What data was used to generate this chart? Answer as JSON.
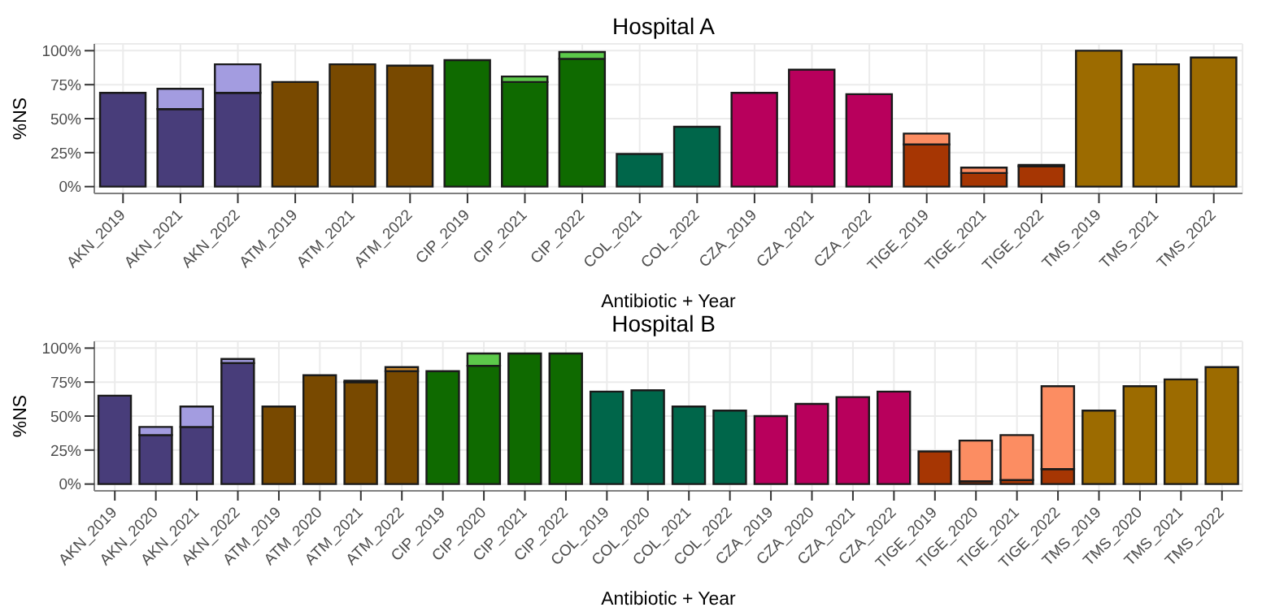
{
  "chart_data": [
    {
      "type": "bar",
      "title": "Hospital A",
      "xlabel": "Antibiotic + Year",
      "ylabel": "%NS",
      "stacked": true,
      "grid": true,
      "categories": [
        "AKN_2019",
        "AKN_2021",
        "AKN_2022",
        "ATM_2019",
        "ATM_2021",
        "ATM_2022",
        "CIP_2019",
        "CIP_2021",
        "CIP_2022",
        "COL_2021",
        "COL_2022",
        "CZA_2019",
        "CZA_2021",
        "CZA_2022",
        "TIGE_2019",
        "TIGE_2021",
        "TIGE_2022",
        "TMS_2019",
        "TMS_2021",
        "TMS_2022"
      ],
      "ylim": [
        -5,
        105
      ],
      "yticks": [
        {
          "value": 0,
          "label": "0%"
        },
        {
          "value": 25,
          "label": "25%"
        },
        {
          "value": 50,
          "label": "50%"
        },
        {
          "value": 75,
          "label": "75%"
        },
        {
          "value": 100,
          "label": "100%"
        }
      ],
      "series": [
        {
          "values": [
            69,
            57,
            69,
            77,
            90,
            89,
            93,
            77,
            94,
            24,
            44,
            69,
            86,
            68,
            31,
            10,
            15,
            100,
            90,
            95
          ],
          "colors": [
            "#483d7a",
            "#483d7a",
            "#483d7a",
            "#784900",
            "#784900",
            "#784900",
            "#0f6a00",
            "#0f6a00",
            "#0f6a00",
            "#00664a",
            "#00664a",
            "#b8005c",
            "#b8005c",
            "#b8005c",
            "#a63603",
            "#a63603",
            "#a63603",
            "#9c6b00",
            "#9c6b00",
            "#9c6b00"
          ]
        },
        {
          "values": [
            null,
            15,
            21,
            null,
            null,
            null,
            null,
            4,
            5,
            null,
            null,
            null,
            null,
            null,
            8,
            4,
            1,
            null,
            null,
            null
          ],
          "colors": [
            "#a39ce0",
            "#a39ce0",
            "#a39ce0",
            "#c8862a",
            "#c8862a",
            "#c8862a",
            "#5cc94a",
            "#5cc94a",
            "#5cc94a",
            "#3fb58a",
            "#3fb58a",
            "#e6559c",
            "#e6559c",
            "#e6559c",
            "#fc8d62",
            "#fc8d62",
            "#fc8d62",
            "#d4a13a",
            "#d4a13a",
            "#d4a13a"
          ]
        }
      ]
    },
    {
      "type": "bar",
      "title": "Hospital B",
      "xlabel": "Antibiotic + Year",
      "ylabel": "%NS",
      "stacked": true,
      "grid": true,
      "categories": [
        "AKN_2019",
        "AKN_2020",
        "AKN_2021",
        "AKN_2022",
        "ATM_2019",
        "ATM_2020",
        "ATM_2021",
        "ATM_2022",
        "CIP_2019",
        "CIP_2020",
        "CIP_2021",
        "CIP_2022",
        "COL_2019",
        "COL_2020",
        "COL_2021",
        "COL_2022",
        "CZA_2019",
        "CZA_2020",
        "CZA_2021",
        "CZA_2022",
        "TIGE_2019",
        "TIGE_2020",
        "TIGE_2021",
        "TIGE_2022",
        "TMS_2019",
        "TMS_2020",
        "TMS_2021",
        "TMS_2022"
      ],
      "ylim": [
        -5,
        105
      ],
      "yticks": [
        {
          "value": 0,
          "label": "0%"
        },
        {
          "value": 25,
          "label": "25%"
        },
        {
          "value": 50,
          "label": "50%"
        },
        {
          "value": 75,
          "label": "75%"
        },
        {
          "value": 100,
          "label": "100%"
        }
      ],
      "series": [
        {
          "values": [
            65,
            36,
            42,
            89,
            57,
            80,
            75,
            83,
            83,
            87,
            96,
            96,
            68,
            69,
            57,
            54,
            50,
            59,
            64,
            68,
            24,
            2,
            3,
            11,
            54,
            72,
            77,
            86
          ],
          "colors": [
            "#483d7a",
            "#483d7a",
            "#483d7a",
            "#483d7a",
            "#784900",
            "#784900",
            "#784900",
            "#784900",
            "#0f6a00",
            "#0f6a00",
            "#0f6a00",
            "#0f6a00",
            "#00664a",
            "#00664a",
            "#00664a",
            "#00664a",
            "#b8005c",
            "#b8005c",
            "#b8005c",
            "#b8005c",
            "#a63603",
            "#a63603",
            "#a63603",
            "#a63603",
            "#9c6b00",
            "#9c6b00",
            "#9c6b00",
            "#9c6b00"
          ]
        },
        {
          "values": [
            null,
            6,
            15,
            3,
            null,
            null,
            1,
            3,
            null,
            9,
            null,
            null,
            null,
            null,
            null,
            null,
            null,
            null,
            null,
            null,
            null,
            30,
            33,
            61,
            null,
            null,
            null,
            null
          ],
          "colors": [
            "#a39ce0",
            "#a39ce0",
            "#a39ce0",
            "#a39ce0",
            "#c8862a",
            "#c8862a",
            "#c8862a",
            "#c8862a",
            "#5cc94a",
            "#5cc94a",
            "#5cc94a",
            "#5cc94a",
            "#3fb58a",
            "#3fb58a",
            "#3fb58a",
            "#3fb58a",
            "#e6559c",
            "#e6559c",
            "#e6559c",
            "#e6559c",
            "#fc8d62",
            "#fc8d62",
            "#fc8d62",
            "#fc8d62",
            "#d4a13a",
            "#d4a13a",
            "#d4a13a",
            "#d4a13a"
          ]
        }
      ]
    }
  ]
}
